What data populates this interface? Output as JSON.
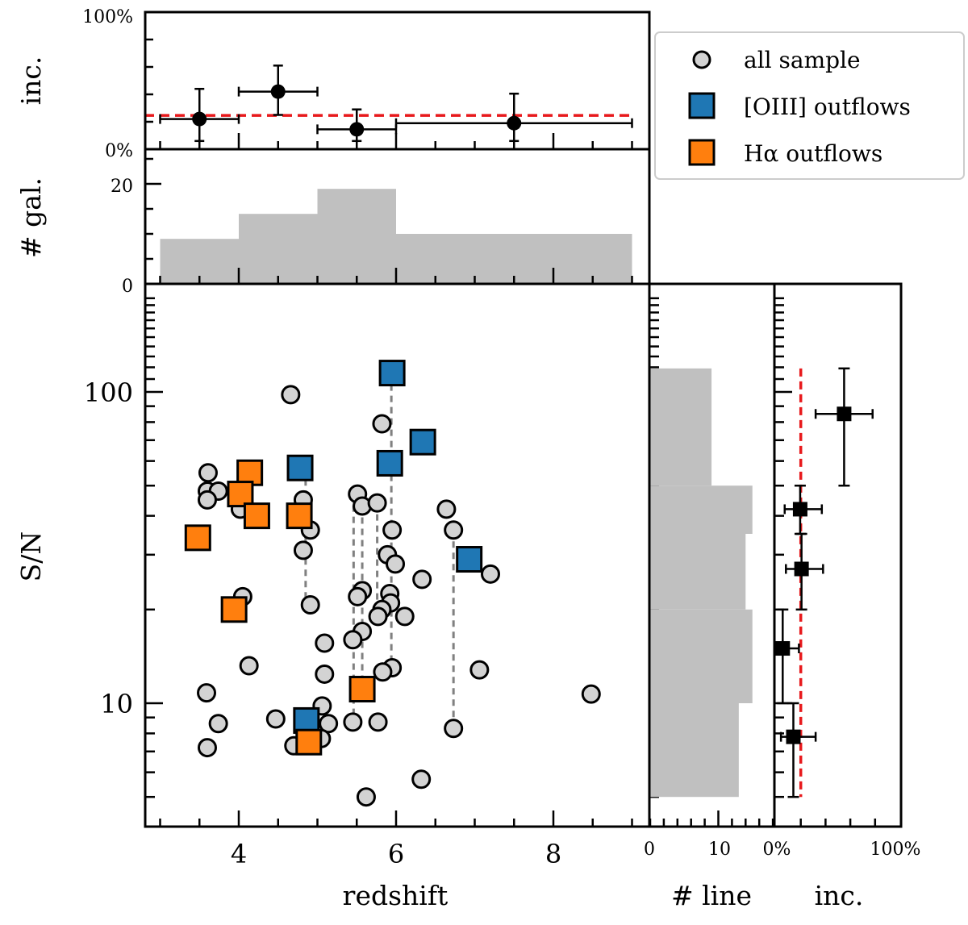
{
  "chart_data": [
    {
      "panel": "incidence_vs_redshift",
      "type": "scatter",
      "ylabel": "inc.",
      "xlim": [
        2.8,
        9.2
      ],
      "ylim": [
        0,
        100
      ],
      "yticklabels": [
        "0%",
        "100%"
      ],
      "mean_incidence": 24.6,
      "points": [
        {
          "z": 3.5,
          "z_lo": 3,
          "z_hi": 4,
          "inc": 22,
          "inc_lo": 6,
          "inc_hi": 44
        },
        {
          "z": 4.5,
          "z_lo": 4,
          "z_hi": 5,
          "inc": 42,
          "inc_lo": 25,
          "inc_hi": 61
        },
        {
          "z": 5.5,
          "z_lo": 5,
          "z_hi": 6,
          "inc": 14.5,
          "inc_lo": 6,
          "inc_hi": 29
        },
        {
          "z": 7.5,
          "z_lo": 6,
          "z_hi": 9,
          "inc": 19,
          "inc_lo": 6,
          "inc_hi": 40.5
        }
      ]
    },
    {
      "panel": "hist_redshift",
      "type": "bar",
      "ylabel": "# gal.",
      "ylim": [
        0,
        26.6
      ],
      "yticklabels": [
        "0",
        "20"
      ],
      "bins": [
        [
          3,
          4
        ],
        [
          4,
          5
        ],
        [
          5,
          6
        ],
        [
          6,
          9
        ]
      ],
      "counts": [
        9,
        14,
        19,
        10
      ]
    },
    {
      "panel": "main",
      "type": "scatter",
      "xlabel": "redshift",
      "ylabel": "S/N",
      "xlim": [
        2.8,
        9.2
      ],
      "ylim": [
        4,
        222
      ],
      "yscale": "log",
      "xticklabels": [
        "4",
        "6",
        "8"
      ],
      "yticklabels": [
        "10",
        "100"
      ],
      "legend": {
        "position": "top-right",
        "entries": [
          "all sample",
          "[OIII] outflows",
          "Hα outflows"
        ]
      },
      "series": [
        {
          "name": "all sample",
          "marker": "circle",
          "color": "#d3d3d3",
          "points": [
            [
              4.66,
              98
            ],
            [
              5.82,
              79
            ],
            [
              3.61,
              55
            ],
            [
              3.6,
              48
            ],
            [
              3.74,
              48
            ],
            [
              3.6,
              45
            ],
            [
              4.02,
              42
            ],
            [
              4.82,
              45
            ],
            [
              4.91,
              36
            ],
            [
              4.82,
              31
            ],
            [
              5.51,
              47
            ],
            [
              5.57,
              43
            ],
            [
              5.76,
              44
            ],
            [
              5.95,
              36
            ],
            [
              5.89,
              30
            ],
            [
              5.99,
              28
            ],
            [
              6.64,
              42
            ],
            [
              6.73,
              36
            ],
            [
              7.2,
              26
            ],
            [
              6.33,
              25
            ],
            [
              5.57,
              23
            ],
            [
              5.51,
              22
            ],
            [
              5.92,
              22.5
            ],
            [
              5.93,
              21
            ],
            [
              5.82,
              20
            ],
            [
              5.77,
              19
            ],
            [
              6.11,
              19
            ],
            [
              5.57,
              17
            ],
            [
              5.45,
              16
            ],
            [
              5.95,
              13
            ],
            [
              5.83,
              12.6
            ],
            [
              7.06,
              12.8
            ],
            [
              8.48,
              10.7
            ],
            [
              5.45,
              8.7
            ],
            [
              5.77,
              8.7
            ],
            [
              6.73,
              8.3
            ],
            [
              6.32,
              5.7
            ],
            [
              5.62,
              5.0
            ],
            [
              4.05,
              22
            ],
            [
              4.91,
              20.7
            ],
            [
              5.09,
              15.6
            ],
            [
              4.13,
              13.2
            ],
            [
              5.09,
              12.4
            ],
            [
              3.59,
              10.8
            ],
            [
              5.06,
              9.8
            ],
            [
              4.47,
              8.9
            ],
            [
              3.74,
              8.6
            ],
            [
              5.14,
              8.6
            ],
            [
              5.05,
              7.7
            ],
            [
              4.7,
              7.3
            ],
            [
              3.6,
              7.2
            ]
          ]
        },
        {
          "name": "[OIII] outflows",
          "marker": "square",
          "color": "#1f77b4",
          "points": [
            [
              5.95,
              115
            ],
            [
              6.34,
              69
            ],
            [
              5.92,
              59
            ],
            [
              6.93,
              29
            ],
            [
              4.78,
              57
            ],
            [
              4.86,
              8.8
            ]
          ]
        },
        {
          "name": "Hα outflows",
          "marker": "square",
          "color": "#ff7f0e",
          "points": [
            [
              5.57,
              11.1
            ],
            [
              4.14,
              55
            ],
            [
              4.02,
              47
            ],
            [
              4.23,
              40
            ],
            [
              4.77,
              40
            ],
            [
              3.48,
              34
            ],
            [
              3.94,
              20
            ],
            [
              4.89,
              7.5
            ]
          ]
        }
      ],
      "connections": [
        {
          "z": 4.85,
          "sn_top": 57,
          "sn_bottom": 20.7
        },
        {
          "z": 5.46,
          "sn_top": 47,
          "sn_bottom": 8.7
        },
        {
          "z": 5.57,
          "sn_top": 43,
          "sn_bottom": 11.1
        },
        {
          "z": 5.76,
          "sn_top": 44,
          "sn_bottom": 19
        },
        {
          "z": 5.94,
          "sn_top": 115,
          "sn_bottom": 13
        },
        {
          "z": 6.73,
          "sn_top": 36,
          "sn_bottom": 8.3
        }
      ]
    },
    {
      "panel": "hist_sn",
      "type": "bar",
      "orientation": "horizontal",
      "xlabel": "# line",
      "xlim": [
        0,
        18.2
      ],
      "xticklabels": [
        "0",
        "10"
      ],
      "bins": [
        [
          5,
          10
        ],
        [
          10,
          20
        ],
        [
          20,
          35
        ],
        [
          35,
          50
        ],
        [
          50,
          119
        ]
      ],
      "counts": [
        13,
        15,
        14,
        15,
        9
      ]
    },
    {
      "panel": "incidence_vs_sn",
      "type": "scatter",
      "xlabel": "inc.",
      "xlim": [
        0,
        100
      ],
      "xticklabels": [
        "0%",
        "100%"
      ],
      "mean_incidence": 20,
      "points": [
        {
          "sn": 85,
          "sn_lo": 50,
          "sn_hi": 119,
          "inc": 55,
          "inc_lo": 32,
          "inc_hi": 78
        },
        {
          "sn": 42,
          "sn_lo": 35,
          "sn_hi": 50,
          "inc": 19.5,
          "inc_lo": 7,
          "inc_hi": 37
        },
        {
          "sn": 27,
          "sn_lo": 20,
          "sn_hi": 35,
          "inc": 20.6,
          "inc_lo": 8,
          "inc_hi": 38
        },
        {
          "sn": 15,
          "sn_lo": 10,
          "sn_hi": 20,
          "inc": 5.4,
          "inc_lo": 0,
          "inc_hi": 18.5
        },
        {
          "sn": 7.8,
          "sn_lo": 5,
          "sn_hi": 10,
          "inc": 14,
          "inc_lo": 4,
          "inc_hi": 32
        }
      ]
    }
  ]
}
